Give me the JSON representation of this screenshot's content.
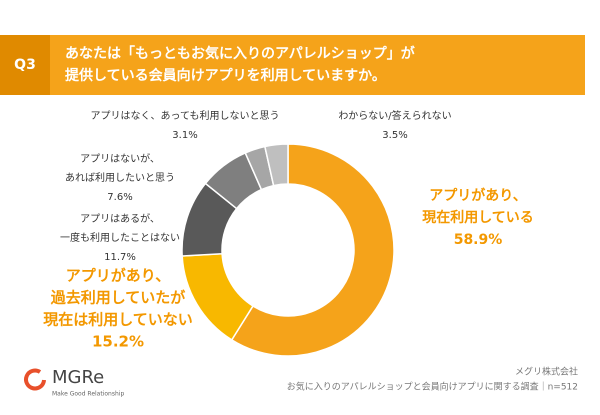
{
  "header": {
    "question": "Q3",
    "title": [
      "あなたは「もっともお気に入りのアパレルショップ」が",
      "提供している会員向けアプリを利用していますか。"
    ]
  },
  "chart_data": {
    "type": "donut",
    "labels": [
      [
        "アプリがあり、",
        "現在利用している"
      ],
      [
        "アプリがあり、",
        "過去利用していたが",
        "現在は利用していない"
      ],
      [
        "アプリはあるが、",
        "一度も利用したことはない"
      ],
      [
        "アプリはないが、",
        "あれば利用したいと思う"
      ],
      [
        "アプリはなく、あっても利用しないと思う"
      ],
      [
        "わからない/答えられない"
      ]
    ],
    "values": [
      58.9,
      15.2,
      11.7,
      7.6,
      3.1,
      3.5
    ],
    "value_labels": [
      "58.9%",
      "15.2%",
      "11.7%",
      "7.6%",
      "3.1%",
      "3.5%"
    ],
    "colors": [
      "#f5a31a",
      "#f8b800",
      "#595959",
      "#7f7f7f",
      "#a6a6a6",
      "#bfbfbf"
    ]
  },
  "footer": {
    "logo": "MGRe",
    "tagline": "Make Good Relationship",
    "company": "メグリ株式会社",
    "source": "お気に入りのアパレルショップと会員向けアプリに関する調査｜n=512"
  }
}
